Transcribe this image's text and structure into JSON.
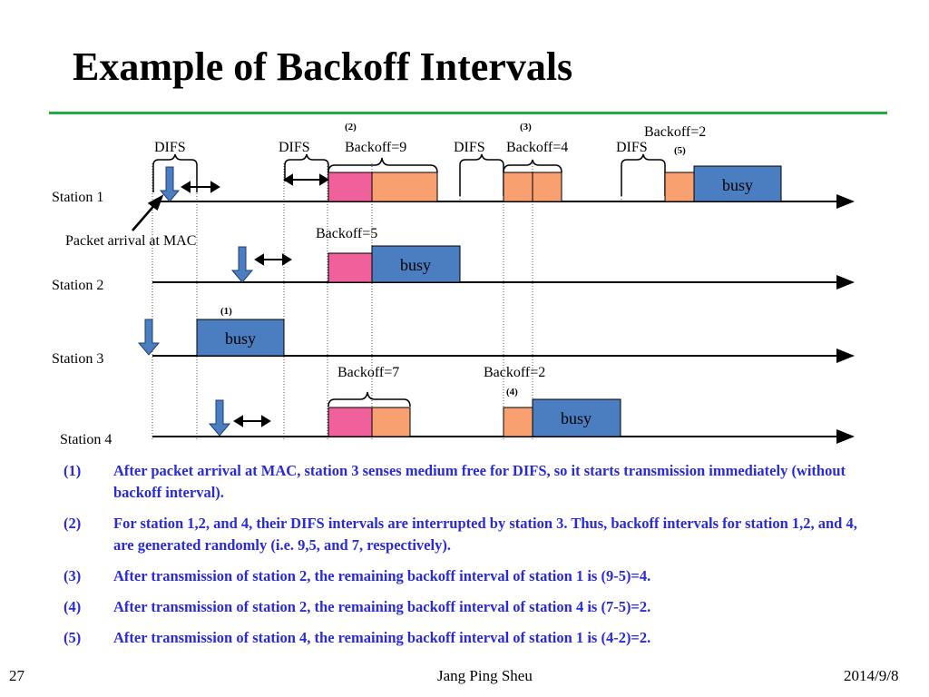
{
  "slide": {
    "title": "Example of Backoff Intervals",
    "page_number": "27",
    "author": "Jang Ping Sheu",
    "date": "2014/9/8"
  },
  "colors": {
    "rule": "#22aa44",
    "pink": "#f0609a",
    "orange": "#f8a070",
    "busy": "#4a7ec0",
    "notes": "#2a2ad8"
  },
  "diagram": {
    "stations": [
      "Station 1",
      "Station 2",
      "Station 3",
      "Station 4"
    ],
    "labels": {
      "difs": "DIFS",
      "packet_arrival": "Packet arrival at MAC",
      "busy": "busy",
      "s1_backoff9": "Backoff=9",
      "s1_backoff4": "Backoff=4",
      "s1_backoff2": "Backoff=2",
      "s2_backoff5": "Backoff=5",
      "s4_backoff7": "Backoff=7",
      "s4_backoff2": "Backoff=2",
      "m1": "(1)",
      "m2": "(2)",
      "m3": "(3)",
      "m4": "(4)",
      "m5": "(5)"
    }
  },
  "notes": [
    {
      "num": "(1)",
      "text": "After packet arrival at MAC, station 3 senses medium free for DIFS, so it starts transmission immediately (without backoff interval)."
    },
    {
      "num": "(2)",
      "text": "For station 1,2, and 4, their DIFS intervals are interrupted by station 3. Thus, backoff intervals for station 1,2, and 4, are generated randomly (i.e. 9,5, and 7, respectively)."
    },
    {
      "num": "(3)",
      "text": "After transmission of station 2, the remaining backoff interval of station 1 is (9-5)=4."
    },
    {
      "num": "(4)",
      "text": "After transmission of station 2, the remaining backoff interval of station 4 is (7-5)=2."
    },
    {
      "num": "(5)",
      "text": "After transmission of station 4, the remaining backoff interval of station 1 is (4-2)=2."
    }
  ]
}
